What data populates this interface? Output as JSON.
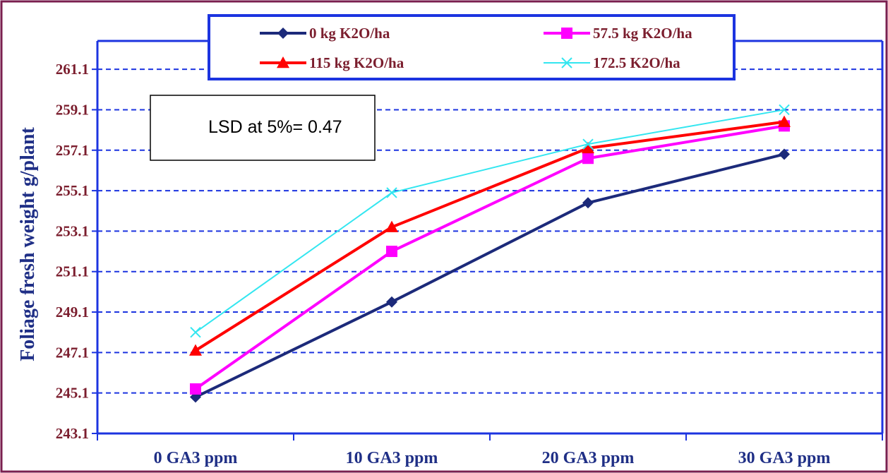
{
  "chart_data": {
    "type": "line",
    "title": "",
    "xlabel": "",
    "ylabel": "Foliage fresh weight g/plant",
    "categories": [
      "0 GA3 ppm",
      "10 GA3 ppm",
      "20 GA3 ppm",
      "30 GA3 ppm"
    ],
    "ylim": [
      243.1,
      262.5
    ],
    "yticks": [
      "243.1",
      "245.1",
      "247.1",
      "249.1",
      "251.1",
      "253.1",
      "255.1",
      "257.1",
      "259.1",
      "261.1"
    ],
    "grid": true,
    "legend_position": "top",
    "annotation": "LSD at 5%= 0.47",
    "series": [
      {
        "name": "0 kg K2O/ha",
        "values": [
          244.9,
          249.6,
          254.5,
          256.9
        ],
        "color": "#1c2a7a",
        "marker": "diamond"
      },
      {
        "name": "57.5 kg K2O/ha",
        "values": [
          245.3,
          252.1,
          256.7,
          258.3
        ],
        "color": "#ff00ff",
        "marker": "square"
      },
      {
        "name": "115 kg K2O/ha",
        "values": [
          247.2,
          253.3,
          257.2,
          258.5
        ],
        "color": "#ff0000",
        "marker": "triangle"
      },
      {
        "name": "172.5 K2O/ha",
        "values": [
          248.1,
          255.0,
          257.4,
          259.1
        ],
        "color": "#33e6f0",
        "marker": "x"
      }
    ]
  }
}
